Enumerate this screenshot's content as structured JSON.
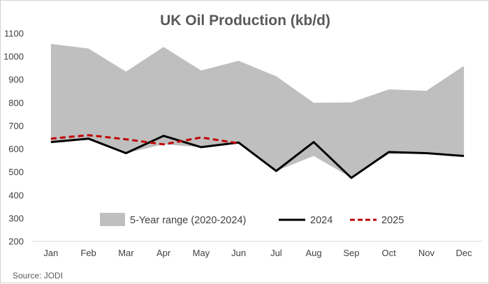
{
  "chart_data": {
    "type": "line",
    "title": "UK Oil Production (kb/d)",
    "categories": [
      "Jan",
      "Feb",
      "Mar",
      "Apr",
      "May",
      "Jun",
      "Jul",
      "Aug",
      "Sep",
      "Oct",
      "Nov",
      "Dec"
    ],
    "range_series": {
      "name": "5-Year range (2020-2024)",
      "type": "area",
      "color": "#bfbfbf",
      "high": [
        1055,
        1035,
        935,
        1042,
        940,
        982,
        915,
        800,
        802,
        858,
        852,
        960
      ],
      "low": [
        630,
        645,
        582,
        620,
        608,
        628,
        505,
        570,
        475,
        578,
        580,
        570
      ]
    },
    "series": [
      {
        "name": "2024",
        "color": "#000000",
        "style": "solid",
        "values": [
          630,
          645,
          582,
          657,
          608,
          628,
          505,
          630,
          475,
          587,
          582,
          570
        ]
      },
      {
        "name": "2025",
        "color": "#c00000",
        "style": "dashed",
        "values": [
          645,
          660,
          642,
          620,
          650,
          625,
          null,
          null,
          null,
          null,
          null,
          null
        ]
      }
    ],
    "ylim": [
      200,
      1100
    ],
    "yticks": [
      200,
      300,
      400,
      500,
      600,
      700,
      800,
      900,
      1000,
      1100
    ],
    "grid": false,
    "legend_position": "bottom-inside",
    "source": "Source: JODI"
  }
}
